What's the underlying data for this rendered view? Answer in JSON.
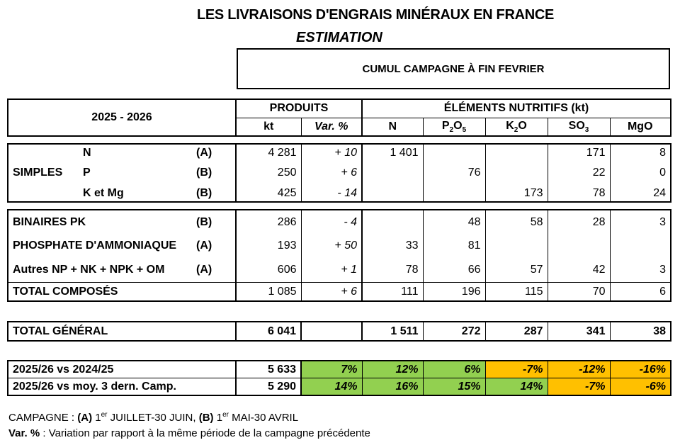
{
  "title": "LES LIVRAISONS D'ENGRAIS MINÉRAUX EN FRANCE",
  "subtitle": "ESTIMATION",
  "cumul": "CUMUL CAMPAGNE À FIN FEVRIER",
  "header": {
    "season": "2025 - 2026",
    "produits": "PRODUITS",
    "elements": "ÉLÉMENTS NUTRITIFS (kt)",
    "kt": "kt",
    "var": "Var. %",
    "N": "N",
    "P2O5": [
      "P",
      "2",
      "O",
      "5"
    ],
    "K2O": [
      "K",
      "2",
      "O"
    ],
    "SO3": [
      "SO",
      "3"
    ],
    "MgO": "MgO"
  },
  "simples": {
    "label": "SIMPLES",
    "rows": [
      {
        "name": "N",
        "code": "(A)",
        "kt": "4 281",
        "var": "+ 10",
        "N": "1 401",
        "P2O5": "",
        "K2O": "",
        "SO3": "171",
        "MgO": "8"
      },
      {
        "name": "P",
        "code": "(B)",
        "kt": "250",
        "var": "+ 6",
        "N": "",
        "P2O5": "76",
        "K2O": "",
        "SO3": "22",
        "MgO": "0"
      },
      {
        "name": "K et Mg",
        "code": "(B)",
        "kt": "425",
        "var": "- 14",
        "N": "",
        "P2O5": "",
        "K2O": "173",
        "SO3": "78",
        "MgO": "24"
      }
    ]
  },
  "composes": [
    {
      "name": "BINAIRES PK",
      "code": "(B)",
      "kt": "286",
      "var": "- 4",
      "N": "",
      "P2O5": "48",
      "K2O": "58",
      "SO3": "28",
      "MgO": "3"
    },
    {
      "name": "PHOSPHATE D'AMMONIAQUE",
      "code": "(A)",
      "kt": "193",
      "var": "+ 50",
      "N": "33",
      "P2O5": "81",
      "K2O": "",
      "SO3": "",
      "MgO": ""
    },
    {
      "name": "Autres NP + NK + NPK + OM",
      "code": "(A)",
      "kt": "606",
      "var": "+ 1",
      "N": "78",
      "P2O5": "66",
      "K2O": "57",
      "SO3": "42",
      "MgO": "3"
    }
  ],
  "total_composes": {
    "name": "TOTAL COMPOSÉS",
    "kt": "1 085",
    "var": "+ 6",
    "N": "111",
    "P2O5": "196",
    "K2O": "115",
    "SO3": "70",
    "MgO": "6"
  },
  "total_general": {
    "name": "TOTAL GÉNÉRAL",
    "kt": "6 041",
    "var": "",
    "N": "1 511",
    "P2O5": "272",
    "K2O": "287",
    "SO3": "341",
    "MgO": "38"
  },
  "comparisons": [
    {
      "name": "2025/26 vs 2024/25",
      "kt": "5 633",
      "var": "7%",
      "N": "12%",
      "P2O5": "6%",
      "K2O": "-7%",
      "SO3": "-12%",
      "MgO": "-16%"
    },
    {
      "name": "2025/26 vs moy. 3 dern. Camp.",
      "kt": "5 290",
      "var": "14%",
      "N": "16%",
      "P2O5": "15%",
      "K2O": "14%",
      "SO3": "-7%",
      "MgO": "-6%"
    }
  ],
  "footnote1": {
    "prefix": "CAMPAGNE : ",
    "a": "(A)",
    "a_sup": "er",
    "a_text": " 1",
    "a_rest": " JUILLET-30 JUIN, ",
    "b": "(B)",
    "b_text": " 1",
    "b_sup": "er",
    "b_rest": " MAI-30 AVRIL"
  },
  "footnote2": {
    "bold": "Var. %",
    "rest": " : Variation par rapport à la même période de la campagne précédente"
  },
  "colors": {
    "green": "#92d050",
    "orange": "#ffc000"
  }
}
